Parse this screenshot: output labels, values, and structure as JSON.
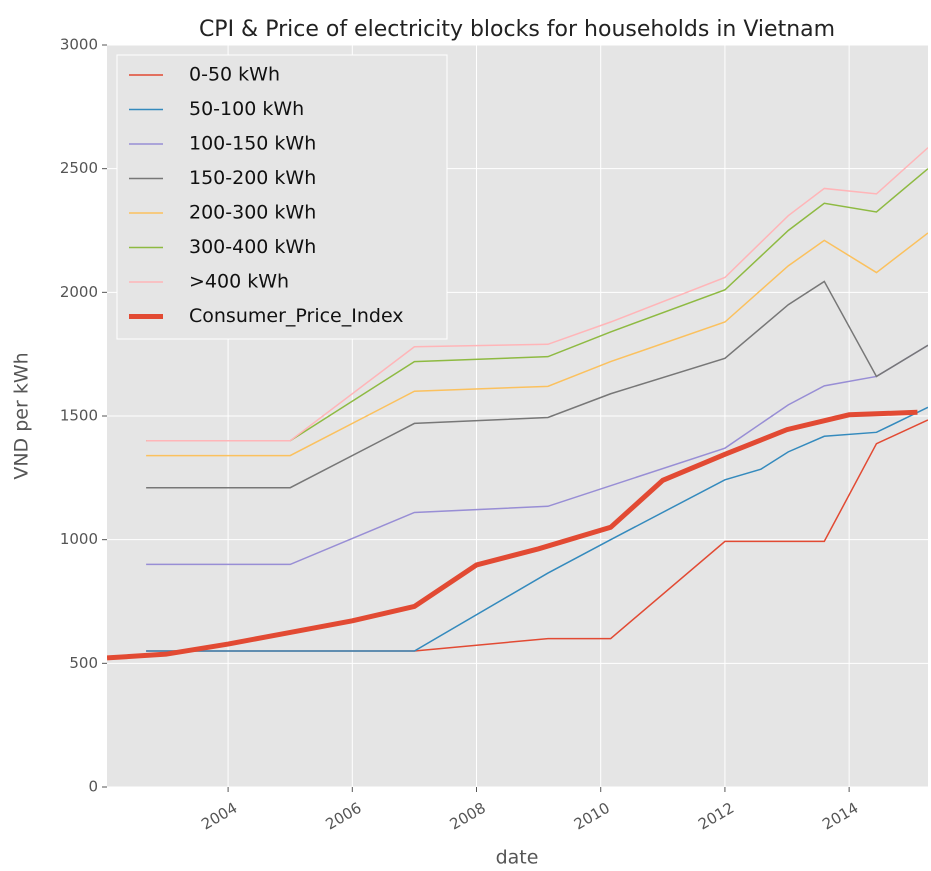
{
  "chart_data": {
    "type": "line",
    "title": "CPI & Price of electricity blocks for households in Vietnam",
    "xlabel": "date",
    "ylabel": "VND per kWh",
    "xlim": [
      2002.05,
      2015.27
    ],
    "xticks": [
      2004,
      2006,
      2008,
      2010,
      2012,
      2014
    ],
    "ylim": [
      0,
      3000
    ],
    "yticks": [
      0,
      500,
      1000,
      1500,
      2000,
      2500,
      3000
    ],
    "grid": true,
    "legend": "upper left",
    "series": [
      {
        "name": "0-50 kWh",
        "color": "#E24A33",
        "width": 1.5,
        "x": [
          2002.68,
          2007.0,
          2009.15,
          2010.16,
          2012.0,
          2013.6,
          2014.44,
          2015.27
        ],
        "values": [
          550,
          550,
          600,
          600,
          993,
          993,
          1388,
          1484
        ]
      },
      {
        "name": "50-100 kWh",
        "color": "#348ABD",
        "width": 1.5,
        "x": [
          2002.68,
          2007.0,
          2009.15,
          2010.16,
          2012.0,
          2012.58,
          2013.02,
          2013.6,
          2014.44,
          2015.27
        ],
        "values": [
          550,
          550,
          865,
          1000,
          1242,
          1285,
          1355,
          1418,
          1434,
          1535
        ]
      },
      {
        "name": "100-150 kWh",
        "color": "#988ED5",
        "width": 1.5,
        "x": [
          2002.68,
          2005.0,
          2007.0,
          2009.15,
          2012.0,
          2013.02,
          2013.6,
          2014.44,
          2015.27
        ],
        "values": [
          900,
          900,
          1110,
          1135,
          1370,
          1545,
          1622,
          1660,
          1786
        ]
      },
      {
        "name": "150-200 kWh",
        "color": "#777777",
        "width": 1.5,
        "x": [
          2002.68,
          2005.0,
          2007.0,
          2009.15,
          2010.16,
          2012.0,
          2013.02,
          2013.6,
          2014.44,
          2015.27
        ],
        "values": [
          1210,
          1210,
          1470,
          1494,
          1590,
          1733,
          1950,
          2044,
          1660,
          1786
        ]
      },
      {
        "name": "200-300 kWh",
        "color": "#FBC15E",
        "width": 1.5,
        "x": [
          2002.68,
          2005.0,
          2007.0,
          2009.15,
          2010.16,
          2012.0,
          2013.02,
          2013.6,
          2014.44,
          2015.27
        ],
        "values": [
          1340,
          1340,
          1600,
          1620,
          1720,
          1880,
          2107,
          2210,
          2080,
          2240
        ]
      },
      {
        "name": "300-400 kWh",
        "color": "#8EBA42",
        "width": 1.5,
        "x": [
          2002.68,
          2005.0,
          2007.0,
          2009.15,
          2010.16,
          2012.0,
          2013.02,
          2013.6,
          2014.44,
          2015.27
        ],
        "values": [
          1400,
          1400,
          1720,
          1740,
          1840,
          2010,
          2250,
          2360,
          2325,
          2500
        ]
      },
      {
        "name": ">400 kWh",
        "color": "#FFB5B8",
        "width": 1.5,
        "x": [
          2002.68,
          2005.0,
          2007.0,
          2009.15,
          2010.16,
          2012.0,
          2013.02,
          2013.6,
          2014.44,
          2015.27
        ],
        "values": [
          1400,
          1400,
          1780,
          1790,
          1880,
          2060,
          2310,
          2420,
          2398,
          2585
        ]
      },
      {
        "name": "Consumer_Price_Index",
        "color": "#E24A33",
        "width": 5,
        "x": [
          2002.05,
          2003.0,
          2004.0,
          2005.0,
          2006.0,
          2007.0,
          2008.0,
          2009.0,
          2010.16,
          2011.0,
          2012.0,
          2013.0,
          2014.0,
          2015.1
        ],
        "values": [
          522,
          537,
          578,
          625,
          672,
          730,
          898,
          963,
          1050,
          1240,
          1345,
          1445,
          1505,
          1515
        ]
      }
    ]
  }
}
